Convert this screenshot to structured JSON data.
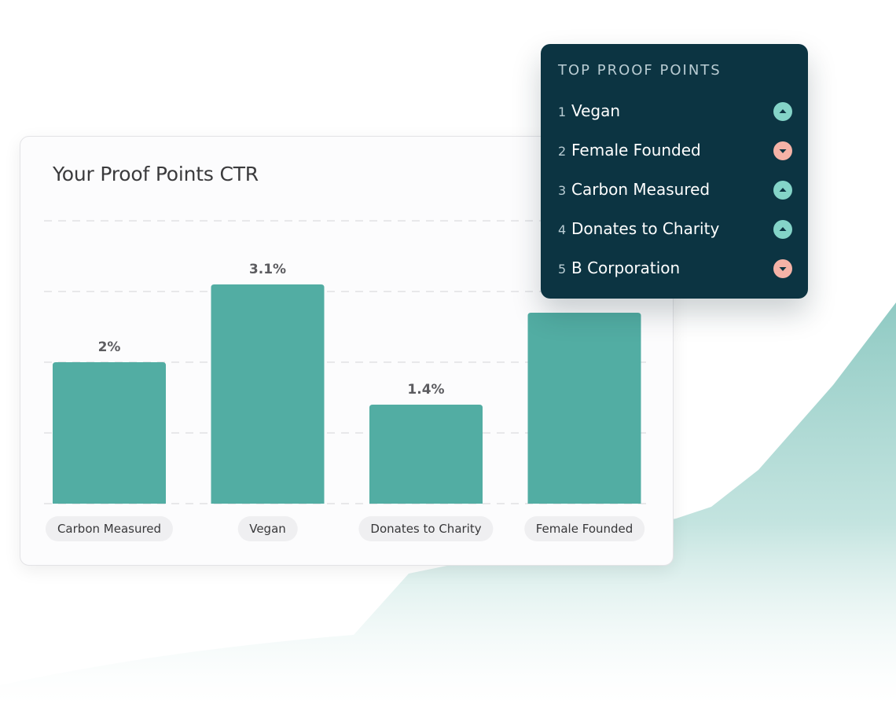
{
  "chart_card": {
    "title": "Your Proof Points CTR"
  },
  "chart_data": {
    "type": "bar",
    "title": "Your Proof Points CTR",
    "categories": [
      "Carbon Measured",
      "Vegan",
      "Donates to Charity",
      "Female Founded"
    ],
    "values": [
      2.0,
      3.1,
      1.4,
      2.7
    ],
    "value_labels": [
      "2%",
      "3.1%",
      "1.4%",
      ""
    ],
    "unit": "%",
    "ylim": [
      0,
      4
    ],
    "grid": true,
    "bar_color": "#52ada3"
  },
  "top_panel": {
    "title": "TOP PROOF POINTS",
    "items": [
      {
        "rank": "1",
        "name": "Vegan",
        "trend": "up"
      },
      {
        "rank": "2",
        "name": "Female Founded",
        "trend": "down"
      },
      {
        "rank": "3",
        "name": "Carbon Measured",
        "trend": "up"
      },
      {
        "rank": "4",
        "name": "Donates to Charity",
        "trend": "up"
      },
      {
        "rank": "5",
        "name": "B Corporation",
        "trend": "down"
      }
    ]
  },
  "colors": {
    "panel_bg": "#0c3442",
    "trend_up": "#84d4c8",
    "trend_down": "#f5b3a7",
    "wave": "#8fcac3"
  }
}
